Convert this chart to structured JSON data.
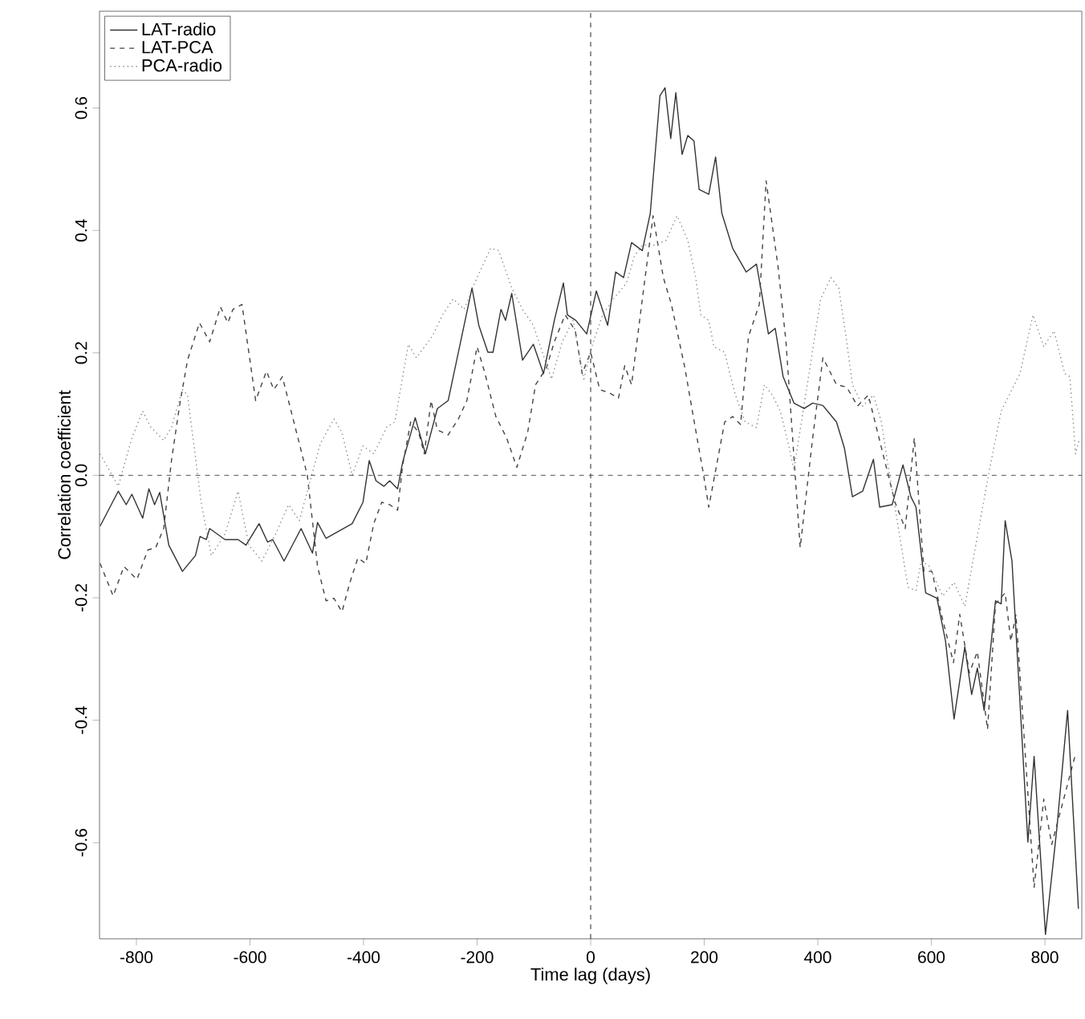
{
  "chart_data": {
    "type": "line",
    "xlabel": "Time lag (days)",
    "ylabel": "Correlation coefficient",
    "xlim": [
      -865,
      865
    ],
    "ylim": [
      -0.757,
      0.758
    ],
    "xticks": [
      -800,
      -600,
      -400,
      -200,
      0,
      200,
      400,
      600,
      800
    ],
    "yticks": [
      -0.6,
      -0.4,
      -0.2,
      {
        "value": 0,
        "label": "0.0"
      },
      0.2,
      0.4,
      0.6
    ],
    "legend": "top left",
    "grid": false,
    "ref_lines": [
      {
        "axis": "x",
        "value": 0,
        "line_style": "dashed",
        "color": "#222222"
      },
      {
        "axis": "y",
        "value": 0,
        "line_style": "dashed",
        "color": "#555555"
      }
    ],
    "series": [
      {
        "name": "LAT-radio",
        "color": "#333333",
        "line_style": "solid",
        "x": [
          -864,
          -832,
          -818,
          -808,
          -789,
          -778,
          -768,
          -759,
          -743,
          -719,
          -696,
          -688,
          -677,
          -671,
          -644,
          -621,
          -607,
          -584,
          -569,
          -560,
          -540,
          -510,
          -490,
          -481,
          -466,
          -420,
          -401,
          -390,
          -378,
          -364,
          -354,
          -340,
          -331,
          -309,
          -291,
          -270,
          -251,
          -209,
          -197,
          -181,
          -172,
          -158,
          -150,
          -139,
          -120,
          -101,
          -83,
          -64,
          -48,
          -41,
          -26,
          -7,
          10,
          30,
          44,
          58,
          72,
          91,
          105,
          122,
          131,
          141,
          150,
          161,
          171,
          182,
          191,
          208,
          220,
          231,
          250,
          274,
          292,
          302,
          313,
          325,
          339,
          358,
          376,
          391,
          409,
          433,
          447,
          461,
          479,
          498,
          509,
          531,
          550,
          564,
          573,
          590,
          610,
          625,
          640,
          659,
          671,
          681,
          693,
          713,
          723,
          730,
          742,
          770,
          781,
          801,
          821,
          840,
          859
        ],
        "values": [
          -0.083,
          -0.026,
          -0.048,
          -0.031,
          -0.07,
          -0.022,
          -0.048,
          -0.028,
          -0.114,
          -0.157,
          -0.131,
          -0.1,
          -0.105,
          -0.087,
          -0.105,
          -0.105,
          -0.114,
          -0.079,
          -0.109,
          -0.105,
          -0.14,
          -0.087,
          -0.127,
          -0.077,
          -0.103,
          -0.079,
          -0.044,
          0.024,
          -0.009,
          -0.018,
          -0.009,
          -0.022,
          0.022,
          0.094,
          0.035,
          0.109,
          0.122,
          0.306,
          0.245,
          0.201,
          0.201,
          0.271,
          0.253,
          0.297,
          0.188,
          0.214,
          0.166,
          0.253,
          0.314,
          0.262,
          0.253,
          0.231,
          0.301,
          0.245,
          0.332,
          0.323,
          0.38,
          0.367,
          0.428,
          0.62,
          0.633,
          0.55,
          0.625,
          0.524,
          0.555,
          0.546,
          0.467,
          0.459,
          0.52,
          0.428,
          0.371,
          0.332,
          0.345,
          0.293,
          0.231,
          0.24,
          0.161,
          0.118,
          0.109,
          0.118,
          0.114,
          0.087,
          0.044,
          -0.035,
          -0.026,
          0.026,
          -0.052,
          -0.048,
          0.017,
          -0.035,
          -0.052,
          -0.192,
          -0.201,
          -0.271,
          -0.398,
          -0.28,
          -0.358,
          -0.315,
          -0.384,
          -0.205,
          -0.21,
          -0.074,
          -0.14,
          -0.599,
          -0.459,
          -0.75,
          -0.577,
          -0.384,
          -0.708
        ]
      },
      {
        "name": "LAT-PCA",
        "color": "#444444",
        "line_style": "dashed",
        "x": [
          -864,
          -841,
          -822,
          -799,
          -780,
          -766,
          -752,
          -738,
          -724,
          -710,
          -689,
          -671,
          -652,
          -639,
          -630,
          -614,
          -590,
          -571,
          -558,
          -543,
          -518,
          -499,
          -481,
          -466,
          -452,
          -438,
          -424,
          -410,
          -396,
          -382,
          -368,
          -354,
          -340,
          -331,
          -317,
          -303,
          -293,
          -281,
          -270,
          -251,
          -233,
          -218,
          -200,
          -186,
          -167,
          -148,
          -130,
          -111,
          -97,
          -78,
          -64,
          -45,
          -27,
          -15,
          0,
          16,
          32,
          49,
          60,
          72,
          91,
          110,
          128,
          142,
          166,
          180,
          199,
          208,
          236,
          250,
          264,
          278,
          297,
          309,
          330,
          344,
          369,
          391,
          409,
          433,
          451,
          470,
          489,
          536,
          554,
          570,
          587,
          601,
          620,
          639,
          650,
          667,
          681,
          699,
          713,
          730,
          740,
          749,
          781,
          798,
          812,
          854
        ],
        "values": [
          -0.144,
          -0.197,
          -0.149,
          -0.17,
          -0.122,
          -0.118,
          -0.087,
          0.026,
          0.114,
          0.188,
          0.249,
          0.218,
          0.275,
          0.249,
          0.271,
          0.279,
          0.122,
          0.17,
          0.14,
          0.161,
          0.07,
          0.0,
          -0.149,
          -0.205,
          -0.201,
          -0.223,
          -0.175,
          -0.135,
          -0.144,
          -0.079,
          -0.044,
          -0.048,
          -0.057,
          0.017,
          0.087,
          0.07,
          0.035,
          0.122,
          0.074,
          0.066,
          0.092,
          0.122,
          0.21,
          0.166,
          0.096,
          0.061,
          0.013,
          0.07,
          0.148,
          0.175,
          0.218,
          0.262,
          0.236,
          0.166,
          0.201,
          0.14,
          0.135,
          0.126,
          0.179,
          0.148,
          0.288,
          0.424,
          0.323,
          0.28,
          0.175,
          0.1,
          0.0,
          -0.052,
          0.087,
          0.096,
          0.083,
          0.227,
          0.279,
          0.481,
          0.341,
          0.218,
          -0.118,
          0.061,
          0.192,
          0.148,
          0.144,
          0.113,
          0.131,
          -0.044,
          -0.087,
          0.061,
          -0.157,
          -0.157,
          -0.236,
          -0.306,
          -0.227,
          -0.323,
          -0.288,
          -0.415,
          -0.21,
          -0.192,
          -0.271,
          -0.227,
          -0.673,
          -0.529,
          -0.603,
          -0.455
        ]
      },
      {
        "name": "PCA-radio",
        "color": "#888888",
        "line_style": "dotted",
        "x": [
          -864,
          -832,
          -808,
          -789,
          -775,
          -752,
          -738,
          -719,
          -710,
          -686,
          -668,
          -644,
          -621,
          -602,
          -579,
          -555,
          -532,
          -513,
          -476,
          -452,
          -438,
          -420,
          -401,
          -382,
          -359,
          -345,
          -321,
          -307,
          -279,
          -261,
          -242,
          -223,
          -200,
          -176,
          -162,
          -139,
          -120,
          -101,
          -69,
          -50,
          -31,
          -12,
          2,
          21,
          40,
          63,
          77,
          91,
          114,
          133,
          152,
          171,
          185,
          194,
          208,
          217,
          236,
          245,
          255,
          272,
          292,
          306,
          320,
          334,
          348,
          358,
          386,
          405,
          423,
          437,
          451,
          461,
          479,
          498,
          512,
          522,
          536,
          559,
          573,
          582,
          596,
          620,
          640,
          659,
          685,
          704,
          723,
          742,
          756,
          779,
          798,
          816,
          835,
          844,
          854,
          861
        ],
        "values": [
          0.035,
          -0.018,
          0.061,
          0.105,
          0.079,
          0.057,
          0.079,
          0.14,
          0.131,
          -0.044,
          -0.131,
          -0.096,
          -0.026,
          -0.114,
          -0.14,
          -0.096,
          -0.048,
          -0.074,
          0.052,
          0.092,
          0.07,
          0.0,
          0.048,
          0.035,
          0.079,
          0.087,
          0.214,
          0.192,
          0.227,
          0.262,
          0.288,
          0.271,
          0.323,
          0.371,
          0.367,
          0.306,
          0.271,
          0.245,
          0.157,
          0.218,
          0.253,
          0.157,
          0.21,
          0.262,
          0.288,
          0.314,
          0.358,
          0.376,
          0.376,
          0.384,
          0.424,
          0.384,
          0.323,
          0.262,
          0.253,
          0.21,
          0.201,
          0.166,
          0.131,
          0.087,
          0.078,
          0.148,
          0.131,
          0.105,
          0.052,
          0.009,
          0.175,
          0.288,
          0.323,
          0.306,
          0.218,
          0.148,
          0.113,
          0.131,
          0.087,
          0.026,
          -0.052,
          -0.183,
          -0.188,
          -0.14,
          -0.148,
          -0.197,
          -0.175,
          -0.214,
          -0.079,
          0.017,
          0.105,
          0.14,
          0.166,
          0.262,
          0.21,
          0.236,
          0.166,
          0.161,
          0.035,
          0.061
        ]
      }
    ]
  }
}
